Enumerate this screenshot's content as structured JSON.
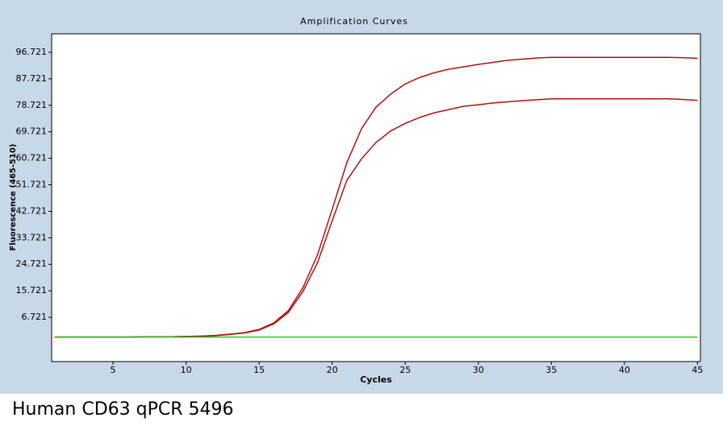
{
  "chart_data": {
    "type": "line",
    "title": "Amplification Curves",
    "x_label": "Cycles",
    "y_label": "Fluorescence (465-510)",
    "x": [
      1,
      2,
      3,
      4,
      5,
      6,
      7,
      8,
      9,
      10,
      11,
      12,
      13,
      14,
      15,
      16,
      17,
      18,
      19,
      20,
      21,
      22,
      23,
      24,
      25,
      26,
      27,
      28,
      29,
      30,
      31,
      32,
      33,
      34,
      35,
      36,
      37,
      38,
      39,
      40,
      41,
      42,
      43,
      44,
      45
    ],
    "series": [
      {
        "color": "#b01010",
        "values": [
          0,
          0,
          0,
          0,
          0,
          0,
          0.1,
          0.1,
          0.1,
          0.2,
          0.3,
          0.6,
          1.0,
          1.5,
          2.6,
          4.8,
          9,
          16.8,
          28,
          43.4,
          59.2,
          70.7,
          78.1,
          82.5,
          86,
          88.2,
          89.8,
          91,
          91.8,
          92.6,
          93.3,
          94,
          94.4,
          94.8,
          95,
          95,
          95,
          95,
          95,
          95,
          95,
          95,
          95,
          94.9,
          94.7
        ]
      },
      {
        "color": "#b01010",
        "values": [
          0,
          0,
          0,
          0,
          0,
          0,
          0.1,
          0.1,
          0.1,
          0.2,
          0.3,
          0.5,
          0.9,
          1.4,
          2.4,
          4.5,
          8.4,
          15.5,
          25.3,
          39.5,
          53.2,
          60.5,
          66.1,
          70,
          72.6,
          74.6,
          76.2,
          77.3,
          78.4,
          78.9,
          79.5,
          79.9,
          80.3,
          80.6,
          80.9,
          80.9,
          80.9,
          80.9,
          80.9,
          80.9,
          80.9,
          80.9,
          80.9,
          80.7,
          80.4
        ]
      },
      {
        "color": "#00dd00",
        "values": [
          0,
          0,
          0,
          0,
          0,
          0,
          0,
          0,
          0,
          0,
          0,
          0,
          0,
          0,
          0,
          0,
          0,
          0,
          0,
          0,
          0,
          0,
          0,
          0,
          0,
          0,
          0,
          0,
          0,
          0,
          0,
          0,
          0,
          0,
          0,
          0,
          0,
          0,
          0,
          0,
          0,
          0,
          0,
          0,
          0
        ]
      }
    ],
    "xlim": [
      0.8,
      45.2
    ],
    "xticks": [
      5,
      10,
      15,
      20,
      25,
      30,
      35,
      40,
      45
    ],
    "ylim": [
      -8.3,
      103
    ],
    "yticks": [
      6.721,
      15.721,
      24.721,
      33.721,
      42.721,
      51.721,
      60.721,
      69.721,
      78.721,
      87.721,
      96.721
    ],
    "grid": false
  },
  "caption": "Human CD63 qPCR 5496"
}
